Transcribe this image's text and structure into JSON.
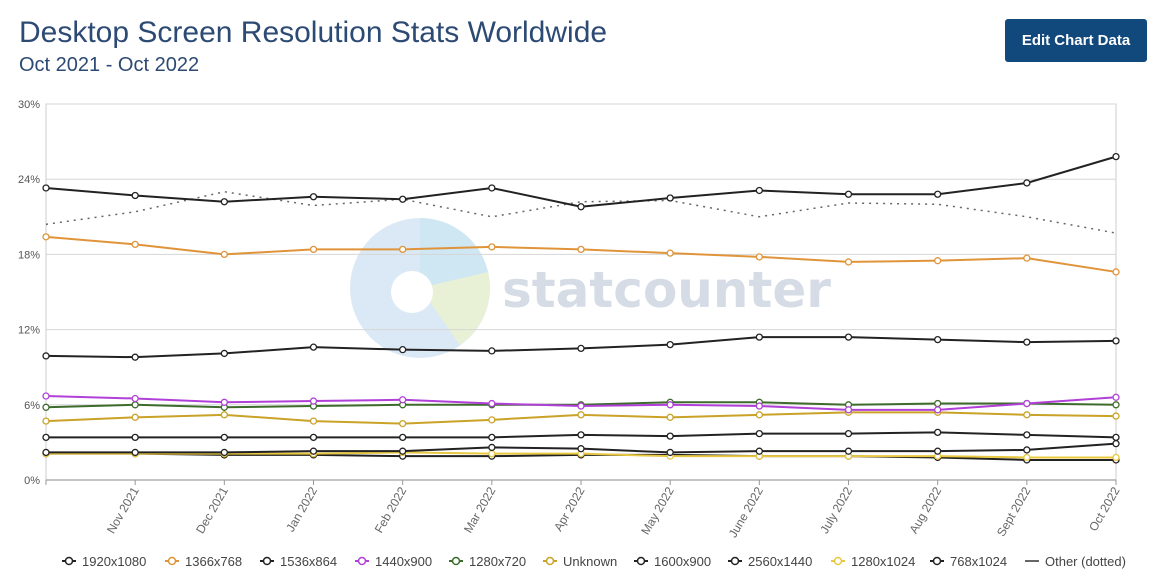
{
  "header": {
    "title": "Desktop Screen Resolution Stats Worldwide",
    "subtitle": "Oct 2021 - Oct 2022",
    "edit_button": "Edit Chart Data"
  },
  "watermark": "statcounter",
  "chart_data": {
    "type": "line",
    "categories": [
      "",
      "Nov 2021",
      "Dec 2021",
      "Jan 2022",
      "Feb 2022",
      "Mar 2022",
      "Apr 2022",
      "May 2022",
      "June 2022",
      "July 2022",
      "Aug 2022",
      "Sept 2022",
      "Oct 2022"
    ],
    "y_ticks": [
      "0%",
      "6%",
      "12%",
      "18%",
      "24%",
      "30%"
    ],
    "ylim": [
      0,
      30
    ],
    "grid": true,
    "legend_position": "bottom",
    "series": [
      {
        "name": "1920x1080",
        "color": "#222222",
        "style": "solid",
        "markers": true,
        "values": [
          23.3,
          22.7,
          22.2,
          22.6,
          22.4,
          23.3,
          21.8,
          22.5,
          23.1,
          22.8,
          22.8,
          23.7,
          25.8
        ]
      },
      {
        "name": "1366x768",
        "color": "#e0943a",
        "style": "solid",
        "markers": true,
        "values": [
          19.4,
          18.8,
          18.0,
          18.4,
          18.4,
          18.6,
          18.4,
          18.1,
          17.8,
          17.4,
          17.5,
          17.7,
          16.6
        ]
      },
      {
        "name": "1536x864",
        "color": "#222222",
        "style": "solid",
        "markers": true,
        "values": [
          9.9,
          9.8,
          10.1,
          10.6,
          10.4,
          10.3,
          10.5,
          10.8,
          11.4,
          11.4,
          11.2,
          11.0,
          11.1
        ]
      },
      {
        "name": "1440x900",
        "color": "#b040d8",
        "style": "solid",
        "markers": true,
        "values": [
          6.7,
          6.5,
          6.2,
          6.3,
          6.4,
          6.1,
          5.9,
          6.0,
          5.9,
          5.6,
          5.6,
          6.1,
          6.6
        ]
      },
      {
        "name": "1280x720",
        "color": "#3d6b2b",
        "style": "solid",
        "markers": true,
        "values": [
          5.8,
          6.0,
          5.8,
          5.9,
          6.0,
          6.0,
          6.0,
          6.2,
          6.2,
          6.0,
          6.1,
          6.1,
          6.0
        ]
      },
      {
        "name": "Unknown",
        "color": "#c9a227",
        "style": "solid",
        "markers": true,
        "values": [
          4.7,
          5.0,
          5.2,
          4.7,
          4.5,
          4.8,
          5.2,
          5.0,
          5.2,
          5.4,
          5.4,
          5.2,
          5.1
        ]
      },
      {
        "name": "1600x900",
        "color": "#222222",
        "style": "solid",
        "markers": true,
        "values": [
          3.4,
          3.4,
          3.4,
          3.4,
          3.4,
          3.4,
          3.6,
          3.5,
          3.7,
          3.7,
          3.8,
          3.6,
          3.4
        ]
      },
      {
        "name": "2560x1440",
        "color": "#222222",
        "style": "solid",
        "markers": true,
        "values": [
          2.2,
          2.2,
          2.2,
          2.3,
          2.3,
          2.6,
          2.5,
          2.2,
          2.3,
          2.3,
          2.3,
          2.4,
          2.9
        ]
      },
      {
        "name": "1280x1024",
        "color": "#e8c840",
        "style": "solid",
        "markers": true,
        "values": [
          2.1,
          2.1,
          2.1,
          2.1,
          2.2,
          2.1,
          2.1,
          1.9,
          1.9,
          1.9,
          1.9,
          1.8,
          1.8
        ]
      },
      {
        "name": "768x1024",
        "color": "#222222",
        "style": "solid",
        "markers": true,
        "values": [
          2.1,
          2.1,
          2.0,
          2.0,
          1.9,
          1.9,
          2.0,
          2.0,
          1.9,
          1.9,
          1.8,
          1.6,
          1.6
        ]
      },
      {
        "name": "Other (dotted)",
        "color": "#666666",
        "style": "dotted",
        "markers": false,
        "values": [
          20.4,
          21.4,
          23.0,
          21.9,
          22.4,
          21.0,
          22.2,
          22.3,
          21.0,
          22.1,
          22.0,
          21.0,
          19.7
        ]
      }
    ]
  }
}
